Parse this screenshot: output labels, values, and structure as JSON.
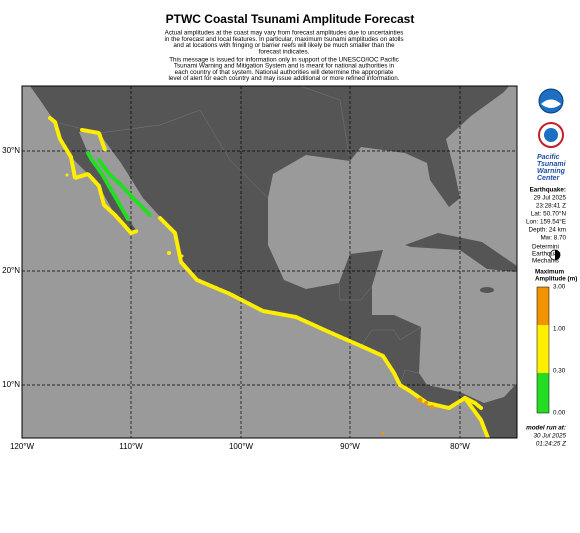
{
  "header": {
    "title": "PTWC Coastal Tsunami Amplitude Forecast",
    "notes": [
      "Actual amplitudes at the coast may vary from forecast amplitudes due to uncertainties",
      "in the forecast and local features.  In particular, maximum tsunami amplitudes on atolls",
      "and at locations with fringing or barrier reefs will likely be much smaller than the",
      "forecast indicates.",
      "This message is issued for information only in support of the UNESCO/IOC Pacific",
      "Tsunami Warning and Mitigation System and is meant for national authorities in",
      "each country of that system. National authorities will determine the appropriate",
      "level of alert for each country and may issue additional or more refined information."
    ]
  },
  "map": {
    "lat_labels": [
      "30°N",
      "20°N",
      "10°N"
    ],
    "lon_labels": [
      "120°W",
      "110°W",
      "100°W",
      "90°W",
      "80°W"
    ]
  },
  "sidebar": {
    "center": [
      "Pacific",
      "Tsunami",
      "Warning",
      "Center"
    ],
    "earthquake": {
      "heading": "Earthquake:",
      "date": "29 Jul 2025",
      "time": "23:28:41 Z",
      "lat": "Lat: 50.70°N",
      "lon": "Lon: 159.54°E",
      "depth": "Depth: 24 km",
      "magnitude": "Mw: 8.70"
    },
    "mechanism": [
      "Determini",
      "Earthquak",
      "Mechanis"
    ],
    "legend": {
      "title": [
        "Maximum",
        "Amplitude (m)"
      ],
      "levels": [
        "3.00",
        "1.00",
        "0.30",
        "0.00"
      ]
    },
    "model_run": [
      "model run at:",
      "30 Jul 2025",
      "01:24:25 Z"
    ]
  }
}
